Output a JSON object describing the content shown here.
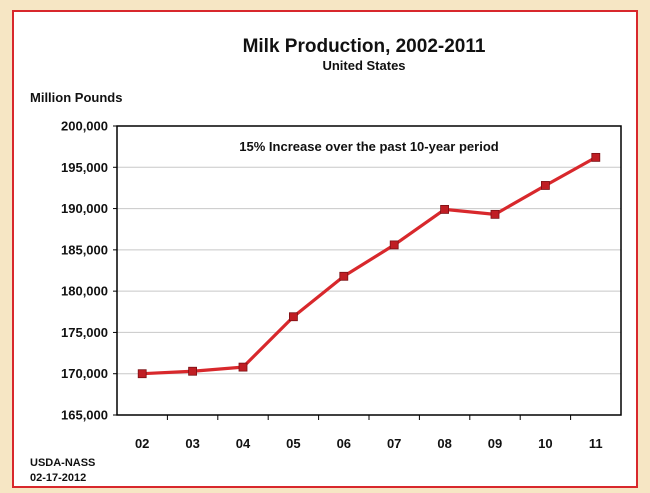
{
  "chart_data": {
    "type": "line",
    "title": "Milk Production, 2002-2011",
    "subtitle": "United States",
    "ylabel": "Million Pounds",
    "xlabel": "",
    "categories": [
      "02",
      "03",
      "04",
      "05",
      "06",
      "07",
      "08",
      "09",
      "10",
      "11"
    ],
    "series": [
      {
        "values": [
          170000,
          170300,
          170800,
          176900,
          181800,
          185600,
          189900,
          189300,
          192800,
          196200
        ]
      }
    ],
    "ylim": [
      165000,
      200000
    ],
    "yticks": [
      165000,
      170000,
      175000,
      180000,
      185000,
      190000,
      195000,
      200000
    ],
    "ytick_labels": [
      "165,000",
      "170,000",
      "175,000",
      "180,000",
      "185,000",
      "190,000",
      "195,000",
      "200,000"
    ],
    "annotation": "15% Increase over the past 10-year period",
    "grid": true,
    "line_color": "#d8282c",
    "marker_color": "#c01e24"
  },
  "source": {
    "line1": "USDA-NASS",
    "line2": "02-17-2012"
  },
  "colors": {
    "frame_border": "#d8282c",
    "page_background": "#f6e6c4"
  }
}
